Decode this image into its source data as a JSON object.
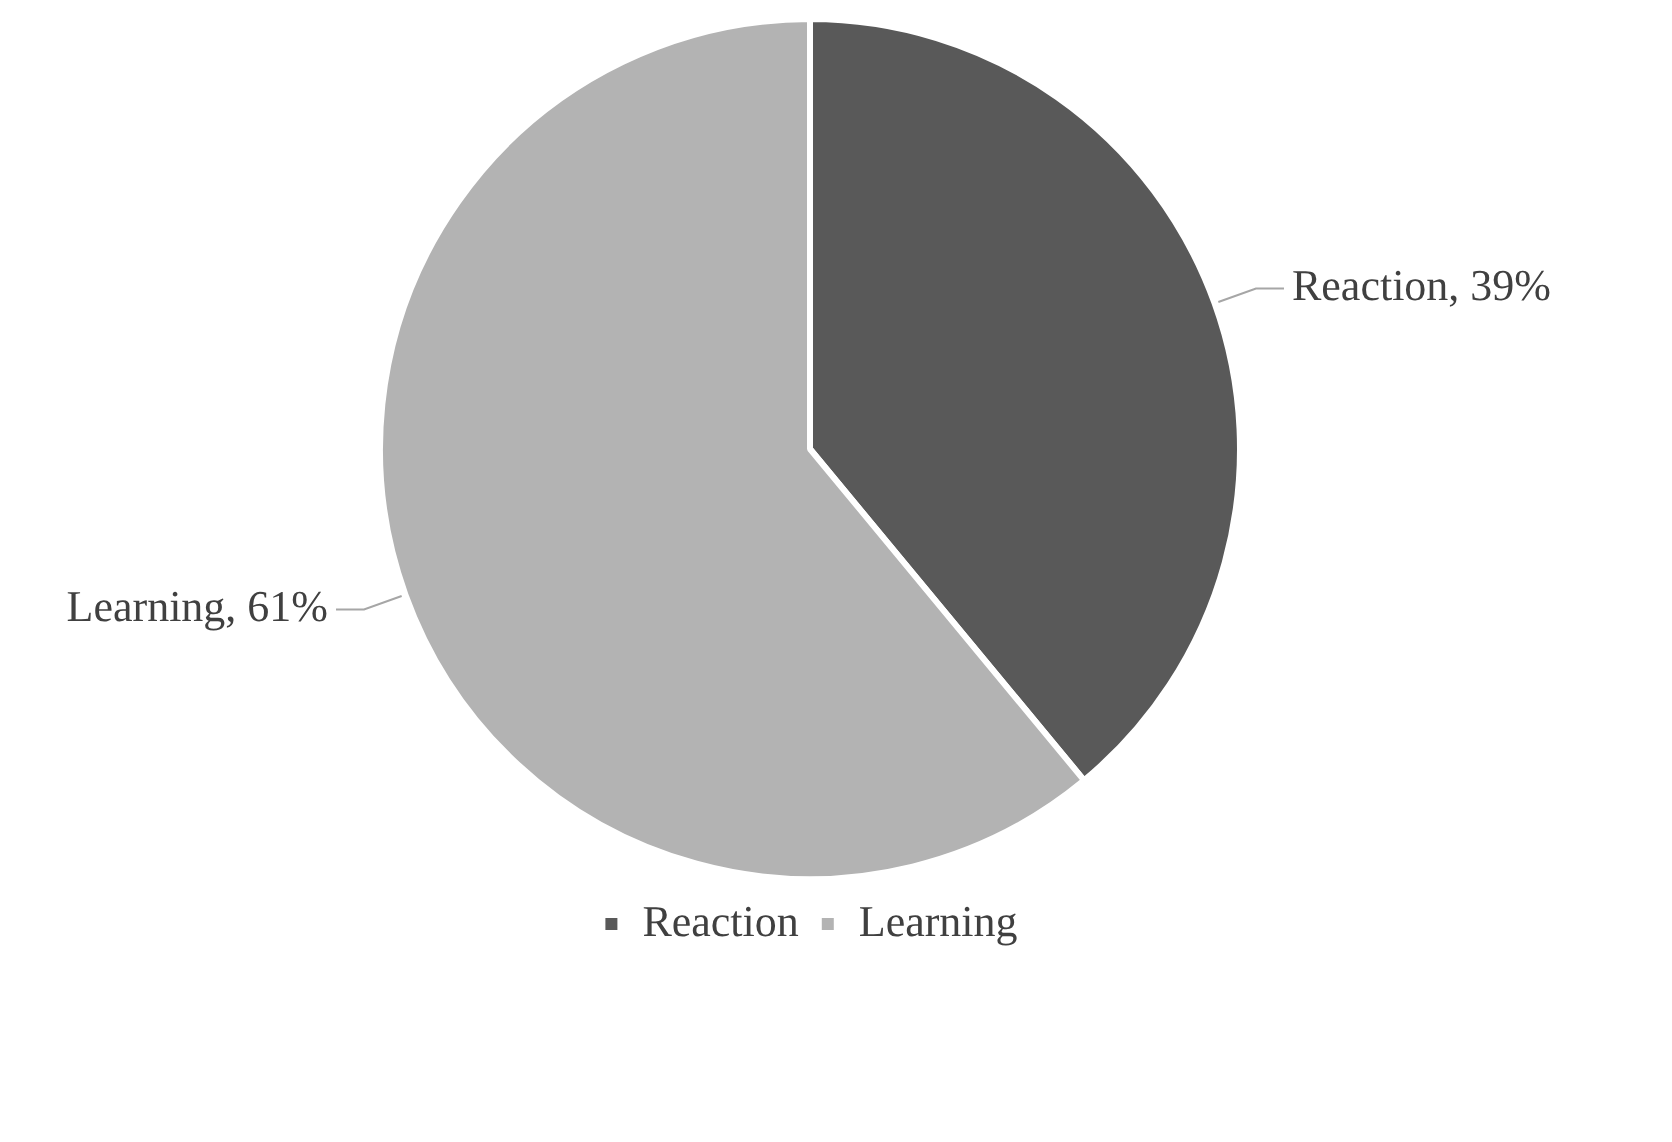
{
  "chart_data": {
    "type": "pie",
    "categories": [
      "Reaction",
      "Learning"
    ],
    "values": [
      39,
      61
    ],
    "colors": [
      "#595959",
      "#b3b3b3"
    ],
    "value_labels": [
      "Reaction, 39%",
      "Learning, 61%"
    ],
    "legend": "bottom"
  }
}
